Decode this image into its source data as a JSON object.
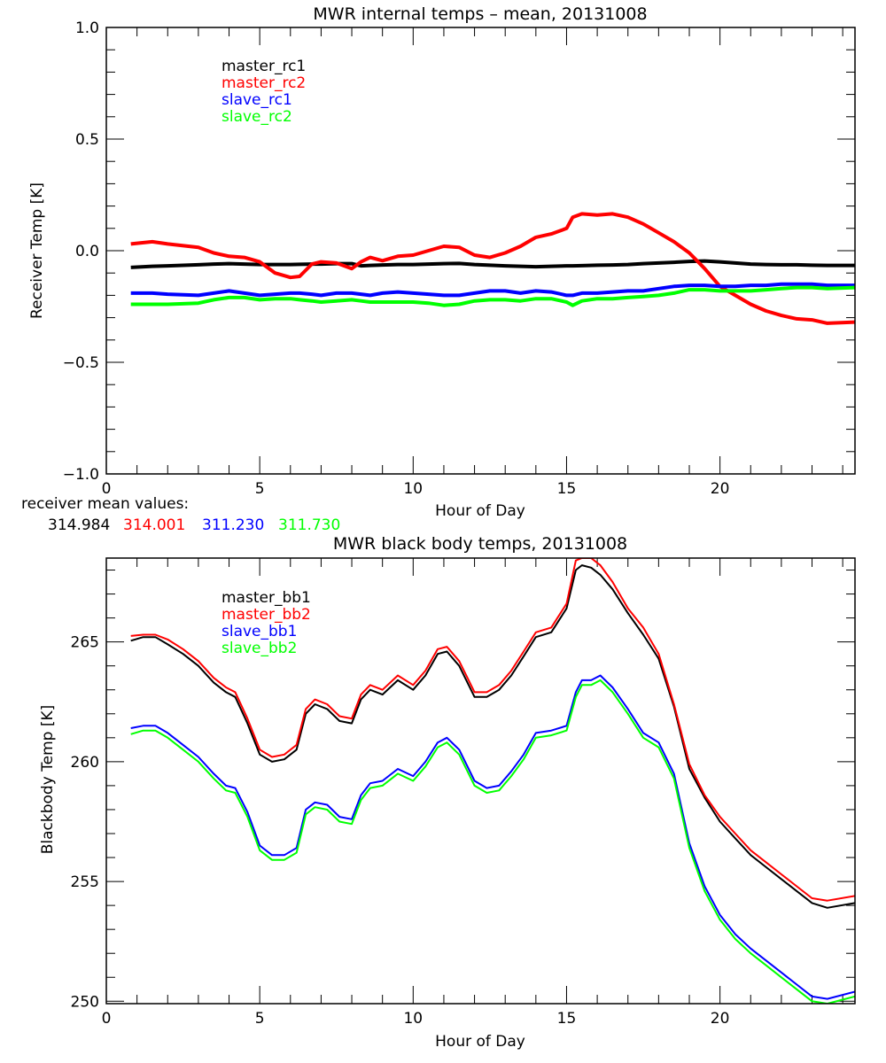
{
  "chart_data": [
    {
      "type": "line",
      "title": "MWR internal temps – mean, 20131008",
      "xlabel": "Hour of Day",
      "ylabel": "Receiver Temp [K]",
      "xlim": [
        0,
        24.4
      ],
      "ylim": [
        -1.0,
        1.0
      ],
      "xticks": [
        0,
        5,
        10,
        15,
        20
      ],
      "xtick_labels": [
        "0",
        "5",
        "10",
        "15",
        "20"
      ],
      "yticks": [
        -1.0,
        -0.5,
        0.0,
        0.5,
        1.0
      ],
      "ytick_labels": [
        "−1.0",
        "−0.5",
        "0.0",
        "0.5",
        "1.0"
      ],
      "x_minor_step": 1,
      "y_minor_step": 0.1,
      "grid": false,
      "legend_placement": "top-left",
      "x": [
        0.8,
        1.5,
        2,
        3,
        3.5,
        4,
        4.5,
        5,
        5.5,
        6,
        6.3,
        6.7,
        7,
        7.5,
        8,
        8.3,
        8.6,
        9,
        9.5,
        10,
        10.5,
        11,
        11.5,
        12,
        12.5,
        13,
        13.5,
        14,
        14.5,
        15,
        15.2,
        15.5,
        16,
        16.5,
        17,
        17.5,
        18,
        18.5,
        19,
        19.5,
        20,
        20.5,
        21,
        21.5,
        22,
        22.5,
        23,
        23.5,
        24.4
      ],
      "series": [
        {
          "name": "master_rc1",
          "color": "#000000",
          "values": [
            -0.075,
            -0.07,
            -0.068,
            -0.063,
            -0.06,
            -0.058,
            -0.06,
            -0.062,
            -0.062,
            -0.062,
            -0.061,
            -0.06,
            -0.06,
            -0.058,
            -0.058,
            -0.068,
            -0.066,
            -0.064,
            -0.062,
            -0.062,
            -0.06,
            -0.058,
            -0.057,
            -0.062,
            -0.065,
            -0.068,
            -0.07,
            -0.072,
            -0.07,
            -0.068,
            -0.068,
            -0.067,
            -0.065,
            -0.064,
            -0.062,
            -0.058,
            -0.055,
            -0.052,
            -0.048,
            -0.046,
            -0.05,
            -0.055,
            -0.06,
            -0.062,
            -0.063,
            -0.063,
            -0.065,
            -0.066,
            -0.066
          ]
        },
        {
          "name": "master_rc2",
          "color": "#ff0000",
          "values": [
            0.03,
            0.04,
            0.03,
            0.015,
            -0.01,
            -0.025,
            -0.03,
            -0.05,
            -0.1,
            -0.12,
            -0.115,
            -0.06,
            -0.05,
            -0.055,
            -0.08,
            -0.05,
            -0.03,
            -0.045,
            -0.025,
            -0.02,
            0.0,
            0.02,
            0.015,
            -0.02,
            -0.03,
            -0.01,
            0.02,
            0.06,
            0.075,
            0.1,
            0.15,
            0.165,
            0.16,
            0.165,
            0.15,
            0.12,
            0.08,
            0.04,
            -0.01,
            -0.08,
            -0.16,
            -0.2,
            -0.24,
            -0.27,
            -0.29,
            -0.305,
            -0.31,
            -0.325,
            -0.32
          ]
        },
        {
          "name": "slave_rc1",
          "color": "#0000ff",
          "values": [
            -0.19,
            -0.19,
            -0.195,
            -0.2,
            -0.19,
            -0.18,
            -0.19,
            -0.2,
            -0.195,
            -0.19,
            -0.19,
            -0.195,
            -0.2,
            -0.19,
            -0.19,
            -0.195,
            -0.2,
            -0.19,
            -0.185,
            -0.19,
            -0.195,
            -0.2,
            -0.2,
            -0.19,
            -0.18,
            -0.18,
            -0.19,
            -0.18,
            -0.185,
            -0.2,
            -0.2,
            -0.19,
            -0.19,
            -0.185,
            -0.18,
            -0.18,
            -0.17,
            -0.16,
            -0.155,
            -0.155,
            -0.16,
            -0.16,
            -0.155,
            -0.155,
            -0.15,
            -0.15,
            -0.15,
            -0.155,
            -0.155
          ]
        },
        {
          "name": "slave_rc2",
          "color": "#00ff00",
          "values": [
            -0.24,
            -0.24,
            -0.24,
            -0.235,
            -0.22,
            -0.21,
            -0.21,
            -0.22,
            -0.215,
            -0.215,
            -0.22,
            -0.225,
            -0.23,
            -0.225,
            -0.22,
            -0.225,
            -0.23,
            -0.23,
            -0.23,
            -0.23,
            -0.235,
            -0.245,
            -0.24,
            -0.225,
            -0.22,
            -0.22,
            -0.225,
            -0.215,
            -0.215,
            -0.23,
            -0.245,
            -0.225,
            -0.215,
            -0.215,
            -0.21,
            -0.205,
            -0.2,
            -0.19,
            -0.175,
            -0.175,
            -0.18,
            -0.18,
            -0.18,
            -0.175,
            -0.17,
            -0.165,
            -0.165,
            -0.17,
            -0.165
          ]
        }
      ],
      "annotation": {
        "label": "receiver mean values:",
        "values": [
          {
            "text": "314.984",
            "color": "#000000"
          },
          {
            "text": "314.001",
            "color": "#ff0000"
          },
          {
            "text": "311.230",
            "color": "#0000ff"
          },
          {
            "text": "311.730",
            "color": "#00ff00"
          }
        ]
      }
    },
    {
      "type": "line",
      "title": "MWR black body temps, 20131008",
      "xlabel": "Hour of Day",
      "ylabel": "Blackbody Temp [K]",
      "xlim": [
        0,
        24.4
      ],
      "ylim": [
        249.9,
        268.5
      ],
      "xticks": [
        0,
        5,
        10,
        15,
        20
      ],
      "xtick_labels": [
        "0",
        "5",
        "10",
        "15",
        "20"
      ],
      "yticks": [
        250,
        255,
        260,
        265
      ],
      "ytick_labels": [
        "250",
        "255",
        "260",
        "265"
      ],
      "x_minor_step": 1,
      "y_minor_step": 1,
      "grid": false,
      "legend_placement": "top-left",
      "x": [
        0.8,
        1.2,
        1.6,
        2,
        2.5,
        3,
        3.5,
        3.9,
        4.2,
        4.6,
        5,
        5.4,
        5.8,
        6.2,
        6.5,
        6.8,
        7.2,
        7.6,
        8,
        8.3,
        8.6,
        9,
        9.5,
        10,
        10.4,
        10.8,
        11.1,
        11.5,
        12,
        12.4,
        12.8,
        13.2,
        13.6,
        14,
        14.5,
        15,
        15.3,
        15.5,
        15.8,
        16.1,
        16.5,
        17,
        17.5,
        18,
        18.5,
        19,
        19.5,
        20,
        20.5,
        21,
        21.5,
        22,
        22.5,
        23,
        23.5,
        24.4
      ],
      "series": [
        {
          "name": "master_bb1",
          "color": "#000000",
          "values": [
            265.05,
            265.2,
            265.2,
            264.9,
            264.5,
            264.0,
            263.3,
            262.9,
            262.7,
            261.6,
            260.3,
            260.0,
            260.1,
            260.5,
            262.0,
            262.4,
            262.2,
            261.7,
            261.6,
            262.6,
            263.0,
            262.8,
            263.4,
            263.0,
            263.6,
            264.5,
            264.6,
            264.0,
            262.7,
            262.7,
            263.0,
            263.6,
            264.4,
            265.2,
            265.4,
            266.4,
            268.0,
            268.2,
            268.1,
            267.8,
            267.2,
            266.2,
            265.3,
            264.3,
            262.3,
            259.7,
            258.5,
            257.5,
            256.8,
            256.1,
            255.6,
            255.1,
            254.6,
            254.1,
            253.9,
            254.1
          ]
        },
        {
          "name": "master_bb2",
          "color": "#ff0000",
          "values": [
            265.25,
            265.3,
            265.3,
            265.1,
            264.7,
            264.2,
            263.5,
            263.1,
            262.9,
            261.8,
            260.5,
            260.2,
            260.3,
            260.7,
            262.2,
            262.6,
            262.4,
            261.9,
            261.8,
            262.8,
            263.2,
            263.0,
            263.6,
            263.2,
            263.8,
            264.7,
            264.8,
            264.2,
            262.9,
            262.9,
            263.2,
            263.8,
            264.6,
            265.4,
            265.6,
            266.6,
            268.4,
            268.5,
            268.5,
            268.2,
            267.5,
            266.4,
            265.6,
            264.5,
            262.4,
            259.9,
            258.6,
            257.7,
            257.0,
            256.3,
            255.8,
            255.3,
            254.8,
            254.3,
            254.2,
            254.4
          ]
        },
        {
          "name": "slave_bb1",
          "color": "#0000ff",
          "values": [
            261.4,
            261.5,
            261.5,
            261.2,
            260.7,
            260.2,
            259.5,
            259.0,
            258.9,
            257.9,
            256.5,
            256.1,
            256.1,
            256.4,
            258.0,
            258.3,
            258.2,
            257.7,
            257.6,
            258.6,
            259.1,
            259.2,
            259.7,
            259.4,
            260.0,
            260.8,
            261.0,
            260.5,
            259.2,
            258.9,
            259.0,
            259.6,
            260.3,
            261.2,
            261.3,
            261.5,
            262.9,
            263.4,
            263.4,
            263.6,
            263.1,
            262.2,
            261.2,
            260.8,
            259.5,
            256.6,
            254.8,
            253.6,
            252.8,
            252.2,
            251.7,
            251.2,
            250.7,
            250.2,
            250.1,
            250.4
          ]
        },
        {
          "name": "slave_bb2",
          "color": "#00ff00",
          "values": [
            261.15,
            261.3,
            261.3,
            261.0,
            260.5,
            260.0,
            259.3,
            258.8,
            258.7,
            257.7,
            256.3,
            255.9,
            255.9,
            256.2,
            257.8,
            258.1,
            258.0,
            257.5,
            257.4,
            258.4,
            258.9,
            259.0,
            259.5,
            259.2,
            259.8,
            260.6,
            260.8,
            260.3,
            259.0,
            258.7,
            258.8,
            259.4,
            260.1,
            261.0,
            261.1,
            261.3,
            262.7,
            263.2,
            263.2,
            263.4,
            262.9,
            262.0,
            261.0,
            260.6,
            259.3,
            256.4,
            254.6,
            253.4,
            252.6,
            252.0,
            251.5,
            251.0,
            250.5,
            250.0,
            249.9,
            250.2
          ]
        }
      ]
    }
  ]
}
